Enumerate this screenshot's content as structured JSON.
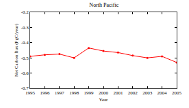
{
  "chart_data": {
    "type": "line",
    "title": "North Pacific",
    "x_label": "Year",
    "y_label": "Net Carbon flux (PgC/year)",
    "x": [
      1995,
      1996,
      1997,
      1998,
      1999,
      2000,
      2001,
      2002,
      2003,
      2004,
      2005
    ],
    "values": [
      -0.49,
      -0.48,
      -0.475,
      -0.5,
      -0.435,
      -0.455,
      -0.465,
      -0.485,
      -0.5,
      -0.49,
      -0.53
    ],
    "color": "#ff0000",
    "marker": "circle",
    "line_style": "solid",
    "xlim": [
      1995,
      2005
    ],
    "xticks": [
      1995,
      1996,
      1997,
      1998,
      1999,
      2000,
      2001,
      2002,
      2003,
      2004,
      2005
    ],
    "ylim": [
      -0.7,
      -0.2
    ],
    "yticks": [
      -0.7,
      -0.6,
      -0.5,
      -0.4,
      -0.3,
      -0.2
    ],
    "grid": false
  }
}
